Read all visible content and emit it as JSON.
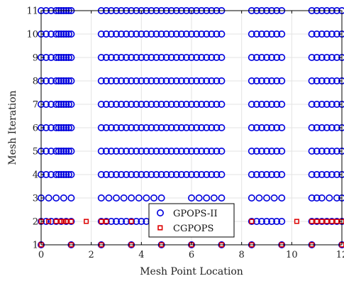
{
  "chart_data": {
    "type": "scatter",
    "xlabel": "Mesh Point Location",
    "ylabel": "Mesh Iteration",
    "xlim": [
      0,
      12
    ],
    "ylim": [
      1,
      11
    ],
    "xticks": [
      0,
      2,
      4,
      6,
      8,
      10,
      12
    ],
    "yticks": [
      1,
      2,
      3,
      4,
      5,
      6,
      7,
      8,
      9,
      10,
      11
    ],
    "grid": true,
    "legend_position": "bottom-center",
    "colors": {
      "gpops": "#0000dd",
      "cgpops": "#dd0000"
    },
    "series": [
      {
        "name": "GPOPS-II",
        "marker": "circle",
        "rows": [
          {
            "iteration": 1,
            "x": [
              0,
              1.2,
              2.4,
              3.6,
              4.8,
              6.0,
              7.2,
              8.4,
              9.6,
              10.8,
              12.0
            ]
          },
          {
            "iteration": 2,
            "x": [
              0,
              0.2,
              0.4,
              0.6,
              0.8,
              1.0,
              1.2,
              2.4,
              2.6,
              2.8,
              3.0,
              3.2,
              3.4,
              3.6,
              3.8,
              4.0,
              4.2,
              4.4,
              4.6,
              4.8,
              5.0,
              8.4,
              8.6,
              8.8,
              9.0,
              9.2,
              9.4,
              9.6,
              10.8,
              11.0,
              11.2,
              11.4,
              11.6,
              11.8,
              12.0
            ]
          },
          {
            "iteration": 3,
            "x": [
              0,
              0.3,
              0.6,
              0.9,
              1.2,
              2.4,
              2.7,
              3.0,
              3.3,
              3.6,
              3.9,
              4.2,
              4.5,
              4.8,
              6.0,
              6.3,
              6.6,
              6.9,
              7.2,
              8.4,
              8.7,
              9.0,
              9.3,
              9.6,
              10.8,
              11.0,
              11.2,
              11.5,
              11.8,
              12.0
            ]
          },
          {
            "iteration": 4,
            "x": [
              0,
              0.2,
              0.4,
              0.6,
              0.7,
              0.8,
              0.9,
              1.0,
              1.1,
              1.2,
              2.4,
              2.6,
              2.8,
              3.0,
              3.2,
              3.4,
              3.6,
              3.8,
              4.0,
              4.2,
              4.4,
              4.6,
              4.8,
              5.0,
              5.2,
              5.4,
              5.6,
              5.8,
              6.0,
              6.2,
              6.4,
              6.6,
              6.8,
              7.0,
              7.2,
              8.4,
              8.6,
              8.8,
              9.0,
              9.2,
              9.4,
              9.6,
              10.8,
              11.0,
              11.2,
              11.4,
              11.6,
              11.8,
              12.0
            ]
          },
          {
            "iteration": 5,
            "x": [
              0,
              0.2,
              0.4,
              0.6,
              0.7,
              0.8,
              0.9,
              1.0,
              1.1,
              1.2,
              2.4,
              2.6,
              2.8,
              3.0,
              3.2,
              3.4,
              3.6,
              3.8,
              4.0,
              4.2,
              4.4,
              4.6,
              4.8,
              5.0,
              5.2,
              5.4,
              5.6,
              5.8,
              6.0,
              6.2,
              6.4,
              6.6,
              6.8,
              7.0,
              7.2,
              8.4,
              8.6,
              8.8,
              9.0,
              9.2,
              9.4,
              9.6,
              10.8,
              11.0,
              11.2,
              11.4,
              11.6,
              11.8,
              12.0
            ]
          },
          {
            "iteration": 6,
            "x": [
              0,
              0.2,
              0.4,
              0.6,
              0.7,
              0.8,
              0.9,
              1.0,
              1.1,
              1.2,
              2.4,
              2.6,
              2.8,
              3.0,
              3.2,
              3.4,
              3.6,
              3.8,
              4.0,
              4.2,
              4.4,
              4.6,
              4.8,
              5.0,
              5.2,
              5.4,
              5.6,
              5.8,
              6.0,
              6.2,
              6.4,
              6.6,
              6.8,
              7.0,
              7.2,
              8.4,
              8.6,
              8.8,
              9.0,
              9.2,
              9.4,
              9.6,
              10.8,
              11.0,
              11.2,
              11.4,
              11.6,
              11.8,
              12.0
            ]
          },
          {
            "iteration": 7,
            "x": [
              0,
              0.2,
              0.4,
              0.6,
              0.7,
              0.8,
              0.9,
              1.0,
              1.1,
              1.2,
              2.4,
              2.6,
              2.8,
              3.0,
              3.2,
              3.4,
              3.6,
              3.8,
              4.0,
              4.2,
              4.4,
              4.6,
              4.8,
              5.0,
              5.2,
              5.4,
              5.6,
              5.8,
              6.0,
              6.2,
              6.4,
              6.6,
              6.8,
              7.0,
              7.2,
              8.4,
              8.6,
              8.8,
              9.0,
              9.2,
              9.4,
              9.6,
              10.8,
              11.0,
              11.2,
              11.4,
              11.6,
              11.8,
              12.0
            ]
          },
          {
            "iteration": 8,
            "x": [
              0,
              0.2,
              0.4,
              0.6,
              0.7,
              0.8,
              0.9,
              1.0,
              1.1,
              1.2,
              2.4,
              2.6,
              2.8,
              3.0,
              3.2,
              3.4,
              3.6,
              3.8,
              4.0,
              4.2,
              4.4,
              4.6,
              4.8,
              5.0,
              5.2,
              5.4,
              5.6,
              5.8,
              6.0,
              6.2,
              6.4,
              6.6,
              6.8,
              7.0,
              7.2,
              8.4,
              8.6,
              8.8,
              9.0,
              9.2,
              9.4,
              9.6,
              10.8,
              11.0,
              11.2,
              11.4,
              11.6,
              11.8,
              12.0
            ]
          },
          {
            "iteration": 9,
            "x": [
              0,
              0.2,
              0.4,
              0.6,
              0.7,
              0.8,
              0.9,
              1.0,
              1.1,
              1.2,
              2.4,
              2.6,
              2.8,
              3.0,
              3.2,
              3.4,
              3.6,
              3.8,
              4.0,
              4.2,
              4.4,
              4.6,
              4.8,
              5.0,
              5.2,
              5.4,
              5.6,
              5.8,
              6.0,
              6.2,
              6.4,
              6.6,
              6.8,
              7.0,
              7.2,
              8.4,
              8.6,
              8.8,
              9.0,
              9.2,
              9.4,
              9.6,
              10.8,
              11.0,
              11.2,
              11.4,
              11.6,
              11.8,
              12.0
            ]
          },
          {
            "iteration": 10,
            "x": [
              0,
              0.2,
              0.4,
              0.6,
              0.7,
              0.8,
              0.9,
              1.0,
              1.1,
              1.2,
              2.4,
              2.6,
              2.8,
              3.0,
              3.2,
              3.4,
              3.6,
              3.8,
              4.0,
              4.2,
              4.4,
              4.6,
              4.8,
              5.0,
              5.2,
              5.4,
              5.6,
              5.8,
              6.0,
              6.2,
              6.4,
              6.6,
              6.8,
              7.0,
              7.2,
              8.4,
              8.6,
              8.8,
              9.0,
              9.2,
              9.4,
              9.6,
              10.8,
              11.0,
              11.2,
              11.4,
              11.6,
              11.8,
              12.0
            ]
          },
          {
            "iteration": 11,
            "x": [
              0,
              0.2,
              0.4,
              0.6,
              0.7,
              0.8,
              0.9,
              1.0,
              1.1,
              1.2,
              2.4,
              2.6,
              2.8,
              3.0,
              3.2,
              3.4,
              3.6,
              3.8,
              4.0,
              4.2,
              4.4,
              4.6,
              4.8,
              5.0,
              5.2,
              5.4,
              5.6,
              5.8,
              6.0,
              6.2,
              6.4,
              6.6,
              6.8,
              7.0,
              7.2,
              8.4,
              8.6,
              8.8,
              9.0,
              9.2,
              9.4,
              9.6,
              10.8,
              11.0,
              11.2,
              11.4,
              11.6,
              11.8,
              12.0
            ]
          }
        ]
      },
      {
        "name": "CGPOPS",
        "marker": "square",
        "rows": [
          {
            "iteration": 1,
            "x": [
              0,
              1.2,
              2.4,
              3.6,
              4.8,
              6.0,
              7.2,
              8.4,
              9.6,
              10.8,
              12.0
            ]
          },
          {
            "iteration": 2,
            "x": [
              0,
              0.3,
              0.6,
              0.8,
              0.9,
              1.0,
              1.2,
              1.8,
              2.4,
              2.6,
              3.6,
              8.4,
              10.2,
              10.8,
              11.0,
              11.2,
              11.4,
              11.6,
              11.8,
              12.0
            ]
          }
        ]
      }
    ]
  }
}
